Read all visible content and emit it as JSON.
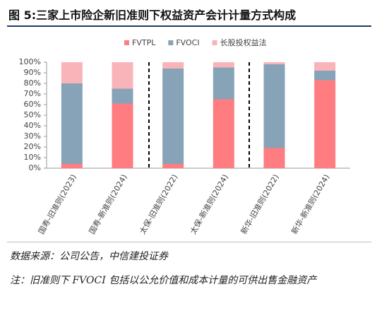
{
  "chart_data": {
    "type": "stacked_bar",
    "title": "图 5:三家上市险企新旧准则下权益资产会计计量方式构成",
    "categories": [
      "国寿-旧准则(2023)",
      "国寿-新准则(2024)",
      "太保-旧准则(2022)",
      "太保-新准则(2024)",
      "新华-旧准则(2022)",
      "新华-新准则(2024)"
    ],
    "series": [
      {
        "name": "FVTPL",
        "color": "#ff7c80",
        "values": [
          4,
          61,
          4,
          65,
          19,
          83
        ]
      },
      {
        "name": "FVOCI",
        "color": "#87a3b7",
        "values": [
          76,
          14,
          90,
          30,
          79,
          9
        ]
      },
      {
        "name": "长股投权益法",
        "color": "#f8b4b9",
        "values": [
          20,
          25,
          6,
          5,
          2,
          8
        ]
      }
    ],
    "ylim": [
      0,
      100
    ],
    "yticks": [
      {
        "value": 0,
        "label": "0%"
      },
      {
        "value": 10,
        "label": "10%"
      },
      {
        "value": 20,
        "label": "20%"
      },
      {
        "value": 30,
        "label": "30%"
      },
      {
        "value": 40,
        "label": "40%"
      },
      {
        "value": 50,
        "label": "50%"
      },
      {
        "value": 60,
        "label": "60%"
      },
      {
        "value": 70,
        "label": "70%"
      },
      {
        "value": 80,
        "label": "80%"
      },
      {
        "value": 90,
        "label": "90%"
      },
      {
        "value": 100,
        "label": "100%"
      }
    ],
    "legend": "top",
    "source": "数据来源：公司公告，中信建投证券",
    "note": "注：旧准则下 FVOCI 包括以公允价值和成本计量的可供出售金融资产"
  }
}
